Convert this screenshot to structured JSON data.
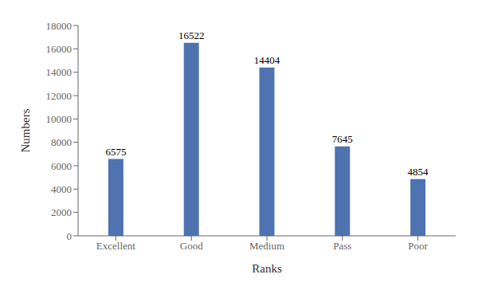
{
  "chart_data": {
    "type": "bar",
    "xlabel": "Ranks",
    "ylabel": "Numbers",
    "categories": [
      "Excellent",
      "Good",
      "Medium",
      "Pass",
      "Poor"
    ],
    "values": [
      6575,
      16522,
      14404,
      7645,
      4854
    ],
    "color": "#4F72B0",
    "ylim": [
      0,
      18000
    ],
    "yticks": [
      0,
      2000,
      4000,
      6000,
      8000,
      10000,
      12000,
      14000,
      16000,
      18000
    ],
    "grid": false,
    "data_labels": true
  }
}
